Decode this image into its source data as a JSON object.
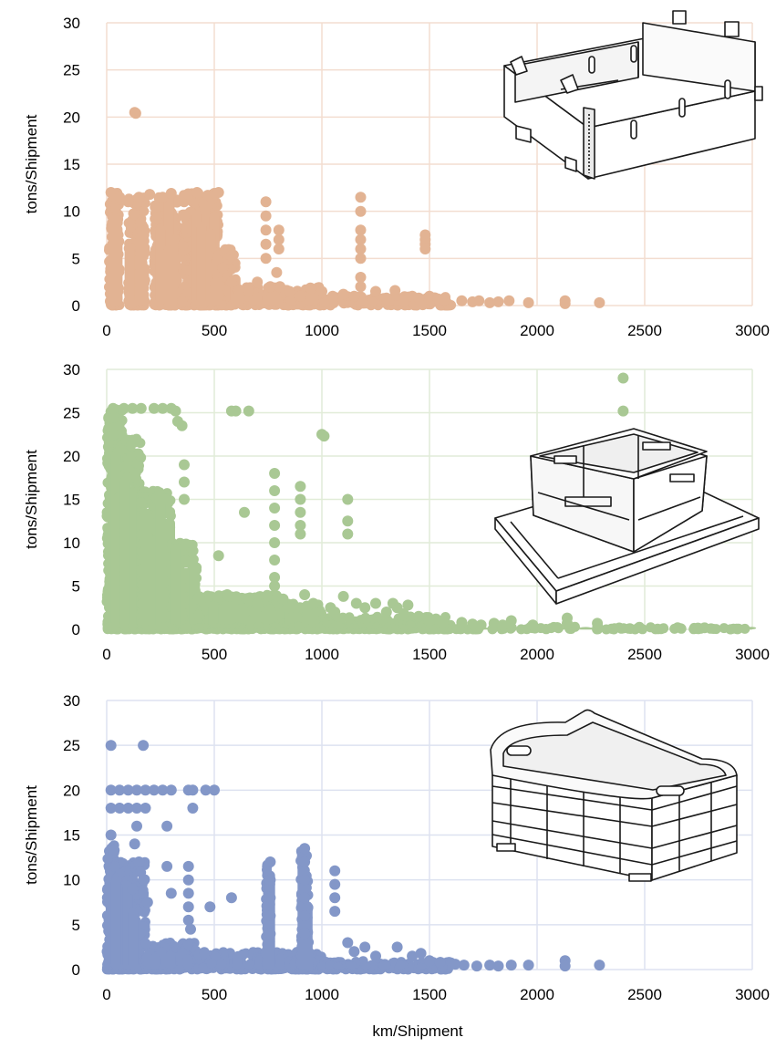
{
  "figure": {
    "xlabel_shared": "km/Shipment"
  },
  "chart_data": [
    {
      "type": "scatter",
      "title": "",
      "xlabel": "",
      "ylabel": "tons/Shipment",
      "xlim": [
        0,
        3000
      ],
      "ylim": [
        0,
        30
      ],
      "xticks": [
        "0",
        "500",
        "1000",
        "1500",
        "2000",
        "2500",
        "3000"
      ],
      "yticks": [
        "0",
        "5",
        "10",
        "15",
        "20",
        "25",
        "30"
      ],
      "grid": true,
      "color": "#e2b393",
      "grid_color": "#f3ddd0",
      "illustration": "cardboard-box-icon",
      "dense_bands": [
        {
          "x": [
            10,
            60
          ],
          "y": [
            0,
            12
          ]
        },
        {
          "x": [
            100,
            180
          ],
          "y": [
            0,
            11.5
          ]
        },
        {
          "x": [
            220,
            330
          ],
          "y": [
            0,
            12
          ]
        },
        {
          "x": [
            350,
            520
          ],
          "y": [
            0,
            12
          ]
        },
        {
          "x": [
            500,
            600
          ],
          "y": [
            0,
            6
          ]
        },
        {
          "x": [
            600,
            1000
          ],
          "y": [
            0,
            2
          ]
        },
        {
          "x": [
            1000,
            1600
          ],
          "y": [
            0,
            1
          ]
        }
      ],
      "points": [
        [
          130,
          20.5
        ],
        [
          135,
          20.4
        ],
        [
          20,
          12
        ],
        [
          60,
          11.5
        ],
        [
          100,
          11
        ],
        [
          150,
          11.5
        ],
        [
          200,
          11.8
        ],
        [
          260,
          11.5
        ],
        [
          300,
          11.9
        ],
        [
          380,
          11.8
        ],
        [
          420,
          12
        ],
        [
          470,
          11.7
        ],
        [
          500,
          11.9
        ],
        [
          520,
          12
        ],
        [
          740,
          11
        ],
        [
          740,
          9.5
        ],
        [
          740,
          8
        ],
        [
          740,
          6.5
        ],
        [
          740,
          5
        ],
        [
          800,
          8
        ],
        [
          800,
          7
        ],
        [
          800,
          6
        ],
        [
          790,
          3.5
        ],
        [
          805,
          2
        ],
        [
          1180,
          11.5
        ],
        [
          1180,
          10
        ],
        [
          1180,
          8
        ],
        [
          1180,
          7
        ],
        [
          1180,
          6
        ],
        [
          1180,
          5
        ],
        [
          1180,
          3
        ],
        [
          1180,
          2
        ],
        [
          1480,
          7.5
        ],
        [
          1480,
          7
        ],
        [
          1480,
          6.5
        ],
        [
          1480,
          6
        ],
        [
          540,
          4
        ],
        [
          560,
          3
        ],
        [
          580,
          2.5
        ],
        [
          660,
          1.5
        ],
        [
          700,
          2.5
        ],
        [
          760,
          2
        ],
        [
          850,
          1.5
        ],
        [
          900,
          1
        ],
        [
          950,
          1.8
        ],
        [
          1000,
          1.5
        ],
        [
          1050,
          1
        ],
        [
          1100,
          1.2
        ],
        [
          1150,
          1
        ],
        [
          1250,
          1.5
        ],
        [
          1300,
          0.8
        ],
        [
          1340,
          1.6
        ],
        [
          1380,
          0.5
        ],
        [
          1420,
          1
        ],
        [
          1450,
          0.8
        ],
        [
          1500,
          1
        ],
        [
          1540,
          0.7
        ],
        [
          1570,
          0.6
        ],
        [
          1650,
          0.5
        ],
        [
          1700,
          0.4
        ],
        [
          1730,
          0.5
        ],
        [
          1780,
          0.3
        ],
        [
          1820,
          0.4
        ],
        [
          1870,
          0.5
        ],
        [
          1960,
          0.3
        ],
        [
          2130,
          0.5
        ],
        [
          2130,
          0.2
        ],
        [
          2290,
          0.3
        ]
      ]
    },
    {
      "type": "scatter",
      "title": "",
      "xlabel": "",
      "ylabel": "tons/Shipment",
      "xlim": [
        0,
        3000
      ],
      "ylim": [
        0,
        30
      ],
      "xticks": [
        "0",
        "500",
        "1000",
        "1500",
        "2000",
        "2500",
        "3000"
      ],
      "yticks": [
        "0",
        "5",
        "10",
        "15",
        "20",
        "25",
        "30"
      ],
      "grid": true,
      "color": "#a9c894",
      "grid_color": "#e1ecd8",
      "illustration": "foldable-crate-icon",
      "dense_bands": [
        {
          "x": [
            0,
            80
          ],
          "y": [
            0,
            25.5
          ]
        },
        {
          "x": [
            80,
            160
          ],
          "y": [
            0,
            22
          ]
        },
        {
          "x": [
            160,
            300
          ],
          "y": [
            0,
            16
          ]
        },
        {
          "x": [
            300,
            420
          ],
          "y": [
            0,
            10
          ]
        },
        {
          "x": [
            420,
            800
          ],
          "y": [
            0,
            4
          ]
        },
        {
          "x": [
            800,
            1000
          ],
          "y": [
            0,
            3
          ]
        },
        {
          "x": [
            1000,
            1600
          ],
          "y": [
            0,
            1.5
          ]
        },
        {
          "x": [
            0,
            3000
          ],
          "y": [
            0,
            0.3
          ]
        }
      ],
      "points": [
        [
          30,
          25.5
        ],
        [
          80,
          25.5
        ],
        [
          120,
          25.5
        ],
        [
          160,
          25.5
        ],
        [
          220,
          25.5
        ],
        [
          260,
          25.5
        ],
        [
          300,
          25.5
        ],
        [
          320,
          25.2
        ],
        [
          330,
          24
        ],
        [
          350,
          23.5
        ],
        [
          580,
          25.2
        ],
        [
          600,
          25.2
        ],
        [
          660,
          25.2
        ],
        [
          1000,
          22.5
        ],
        [
          1010,
          22.3
        ],
        [
          2400,
          29
        ],
        [
          2400,
          25.2
        ],
        [
          360,
          19
        ],
        [
          360,
          17
        ],
        [
          360,
          15
        ],
        [
          780,
          18
        ],
        [
          780,
          16
        ],
        [
          780,
          14
        ],
        [
          780,
          12
        ],
        [
          780,
          10
        ],
        [
          780,
          8
        ],
        [
          780,
          6
        ],
        [
          780,
          5
        ],
        [
          900,
          16.5
        ],
        [
          900,
          15
        ],
        [
          900,
          13.5
        ],
        [
          900,
          12
        ],
        [
          900,
          11
        ],
        [
          1120,
          15
        ],
        [
          1120,
          12.5
        ],
        [
          1120,
          11
        ],
        [
          520,
          8.5
        ],
        [
          640,
          13.5
        ],
        [
          560,
          4
        ],
        [
          600,
          3.5
        ],
        [
          700,
          3
        ],
        [
          820,
          3.5
        ],
        [
          880,
          2.5
        ],
        [
          920,
          4
        ],
        [
          960,
          3
        ],
        [
          1040,
          2.5
        ],
        [
          1060,
          2
        ],
        [
          1100,
          3.8
        ],
        [
          1160,
          3
        ],
        [
          1200,
          2.5
        ],
        [
          1250,
          3
        ],
        [
          1300,
          2
        ],
        [
          1330,
          3
        ],
        [
          1350,
          2.5
        ],
        [
          1380,
          1.8
        ],
        [
          1400,
          2.8
        ],
        [
          1450,
          1.5
        ],
        [
          1500,
          1
        ],
        [
          1530,
          1.2
        ],
        [
          1560,
          0.8
        ],
        [
          1650,
          0.8
        ],
        [
          1700,
          0.6
        ],
        [
          1740,
          0.5
        ],
        [
          1800,
          0.7
        ],
        [
          1840,
          0.5
        ],
        [
          1880,
          1
        ],
        [
          1980,
          0.5
        ],
        [
          2140,
          1.3
        ],
        [
          2140,
          0.7
        ],
        [
          2280,
          0.7
        ]
      ]
    },
    {
      "type": "scatter",
      "title": "",
      "xlabel": "km/Shipment",
      "ylabel": "tons/Shipment",
      "xlim": [
        0,
        3000
      ],
      "ylim": [
        0,
        30
      ],
      "xticks": [
        "0",
        "500",
        "1000",
        "1500",
        "2000",
        "2500",
        "3000"
      ],
      "yticks": [
        "0",
        "5",
        "10",
        "15",
        "20",
        "25",
        "30"
      ],
      "grid": true,
      "color": "#8397c8",
      "grid_color": "#dde2f0",
      "illustration": "plastic-crate-icon",
      "dense_bands": [
        {
          "x": [
            0,
            40
          ],
          "y": [
            0,
            14
          ]
        },
        {
          "x": [
            40,
            180
          ],
          "y": [
            0,
            12
          ]
        },
        {
          "x": [
            180,
            420
          ],
          "y": [
            0,
            3
          ]
        },
        {
          "x": [
            420,
            1000
          ],
          "y": [
            0,
            2
          ]
        },
        {
          "x": [
            1000,
            1600
          ],
          "y": [
            0,
            1
          ]
        },
        {
          "x": [
            740,
            760
          ],
          "y": [
            0,
            12
          ]
        },
        {
          "x": [
            900,
            940
          ],
          "y": [
            0,
            13.5
          ]
        }
      ],
      "points": [
        [
          20,
          25
        ],
        [
          170,
          25
        ],
        [
          20,
          20
        ],
        [
          60,
          20
        ],
        [
          100,
          20
        ],
        [
          140,
          20
        ],
        [
          180,
          20
        ],
        [
          220,
          20
        ],
        [
          260,
          20
        ],
        [
          300,
          20
        ],
        [
          380,
          20
        ],
        [
          400,
          20
        ],
        [
          460,
          20
        ],
        [
          500,
          20
        ],
        [
          20,
          18
        ],
        [
          60,
          18
        ],
        [
          100,
          18
        ],
        [
          140,
          18
        ],
        [
          180,
          18
        ],
        [
          400,
          18
        ],
        [
          20,
          15
        ],
        [
          140,
          16
        ],
        [
          280,
          16
        ],
        [
          130,
          14
        ],
        [
          150,
          12
        ],
        [
          170,
          10
        ],
        [
          120,
          9
        ],
        [
          170,
          8.5
        ],
        [
          190,
          7.5
        ],
        [
          280,
          11.5
        ],
        [
          300,
          8.5
        ],
        [
          380,
          11.5
        ],
        [
          380,
          10
        ],
        [
          380,
          8.5
        ],
        [
          380,
          7
        ],
        [
          380,
          5.5
        ],
        [
          390,
          4.5
        ],
        [
          480,
          7
        ],
        [
          580,
          8
        ],
        [
          760,
          12
        ],
        [
          760,
          10
        ],
        [
          760,
          8
        ],
        [
          760,
          6
        ],
        [
          760,
          4
        ],
        [
          920,
          13.5
        ],
        [
          920,
          12
        ],
        [
          920,
          10
        ],
        [
          920,
          8
        ],
        [
          920,
          6
        ],
        [
          920,
          4
        ],
        [
          1060,
          11
        ],
        [
          1060,
          9.5
        ],
        [
          1060,
          8
        ],
        [
          1060,
          6.5
        ],
        [
          1120,
          3
        ],
        [
          1150,
          2
        ],
        [
          1200,
          2.5
        ],
        [
          1250,
          1.5
        ],
        [
          1350,
          2.5
        ],
        [
          1420,
          1.5
        ],
        [
          1460,
          1.8
        ],
        [
          1500,
          1
        ],
        [
          1550,
          0.8
        ],
        [
          1620,
          0.6
        ],
        [
          1660,
          0.5
        ],
        [
          1720,
          0.4
        ],
        [
          1780,
          0.5
        ],
        [
          1820,
          0.4
        ],
        [
          1880,
          0.5
        ],
        [
          1960,
          0.5
        ],
        [
          2130,
          1
        ],
        [
          2130,
          0.4
        ],
        [
          2290,
          0.5
        ]
      ]
    }
  ]
}
